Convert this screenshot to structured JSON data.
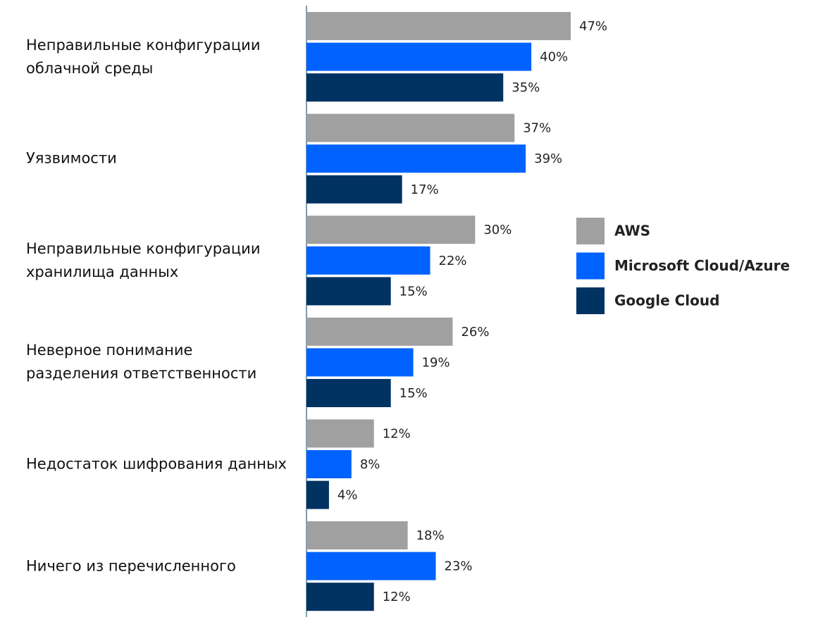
{
  "chart_data": {
    "type": "hbar",
    "categories": [
      "Неправильные конфигурации\nоблачной среды",
      "Уязвимости",
      "Неправильные конфигурации\nхранилища данных",
      "Неверное понимание\nразделения ответственности",
      "Недостаток шифрования данных",
      "Ничего из перечисленного"
    ],
    "series": [
      {
        "name": "AWS",
        "color": "#a0a0a0",
        "values": [
          47,
          37,
          30,
          26,
          12,
          18
        ],
        "value_labels": [
          "47%",
          "37%",
          "30%",
          "26%",
          "12%",
          "18%"
        ]
      },
      {
        "name": "Microsoft Cloud/Azure",
        "color": "#0062ff",
        "values": [
          40,
          39,
          22,
          19,
          8,
          23
        ],
        "value_labels": [
          "40%",
          "39%",
          "22%",
          "19%",
          "8%",
          "23%"
        ]
      },
      {
        "name": "Google Cloud",
        "color": "#003262",
        "values": [
          35,
          17,
          15,
          15,
          4,
          12
        ],
        "value_labels": [
          "35%",
          "17%",
          "15%",
          "15%",
          "4%",
          "12%"
        ]
      }
    ],
    "legend": "right"
  }
}
